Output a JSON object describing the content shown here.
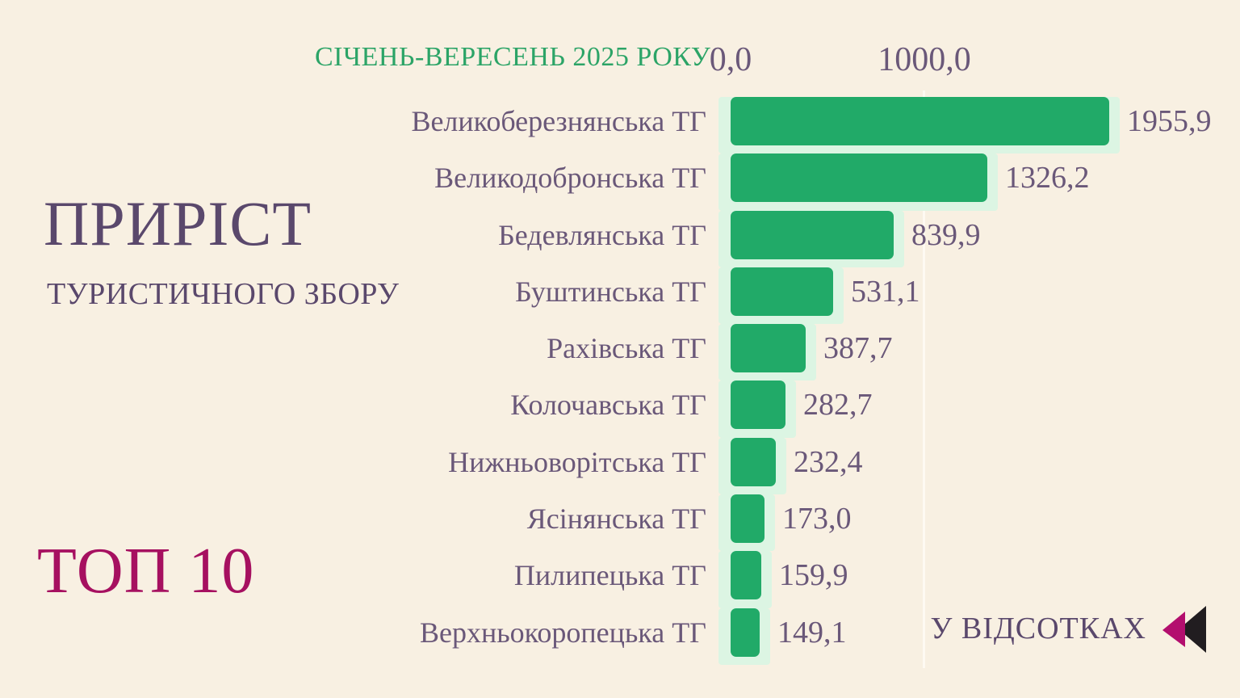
{
  "header": {
    "period": "СІЧЕНЬ-ВЕРЕСЕНЬ 2025 РОКУ"
  },
  "left_panel": {
    "title_line1": "ПРИРІСТ",
    "title_line2": "ТУРИСТИЧНОГО ЗБОРУ",
    "top_label": "ТОП 10"
  },
  "footer": {
    "unit_label": "У ВІДСОТКАХ",
    "icon": "rewind-icon"
  },
  "colors": {
    "background": "#f8f0e2",
    "bar_green": "#21aa68",
    "bar_plate_mint": "#dcf5e3",
    "text_purple": "#6a5879",
    "title_purple": "#5a486c",
    "accent_magenta": "#a61060",
    "header_green": "#2ca467",
    "icon_magenta": "#b30e6e",
    "icon_black": "#211d20"
  },
  "chart_data": {
    "type": "bar",
    "orientation": "horizontal",
    "title": "ПРИРІСТ ТУРИСТИЧНОГО ЗБОРУ",
    "subtitle": "ТОП 10",
    "period": "СІЧЕНЬ-ВЕРЕСЕНЬ 2025 РОКУ",
    "unit": "У ВІДСОТКАХ",
    "xlabel": "",
    "ylabel": "",
    "xlim": [
      0,
      2600
    ],
    "ticks": [
      "0,0",
      "1000,0"
    ],
    "tick_values": [
      0,
      1000
    ],
    "grid": "vertical-at-1000",
    "legend": "none",
    "categories": [
      "Великоберезнянська ТГ",
      "Великодобронська ТГ",
      "Бедевлянська ТГ",
      "Буштинська ТГ",
      "Рахівська ТГ",
      "Колочавська ТГ",
      "Нижньоворітська ТГ",
      "Ясінянська ТГ",
      "Пилипецька ТГ",
      "Верхньокоропецька ТГ"
    ],
    "values": [
      1955.9,
      1326.2,
      839.9,
      531.1,
      387.7,
      282.7,
      232.4,
      173.0,
      159.9,
      149.1
    ],
    "rows": [
      {
        "label": "Великоберезнянська ТГ",
        "value": 1955.9,
        "display": "1955,9"
      },
      {
        "label": "Великодобронська ТГ",
        "value": 1326.2,
        "display": "1326,2"
      },
      {
        "label": "Бедевлянська ТГ",
        "value": 839.9,
        "display": "839,9"
      },
      {
        "label": "Буштинська ТГ",
        "value": 531.1,
        "display": "531,1"
      },
      {
        "label": "Рахівська ТГ",
        "value": 387.7,
        "display": "387,7"
      },
      {
        "label": "Колочавська ТГ",
        "value": 282.7,
        "display": "282,7"
      },
      {
        "label": "Нижньоворітська ТГ",
        "value": 232.4,
        "display": "232,4"
      },
      {
        "label": "Ясінянська ТГ",
        "value": 173.0,
        "display": "173,0"
      },
      {
        "label": "Пилипецька ТГ",
        "value": 159.9,
        "display": "159,9"
      },
      {
        "label": "Верхньокоропецька ТГ",
        "value": 149.1,
        "display": "149,1"
      }
    ]
  }
}
